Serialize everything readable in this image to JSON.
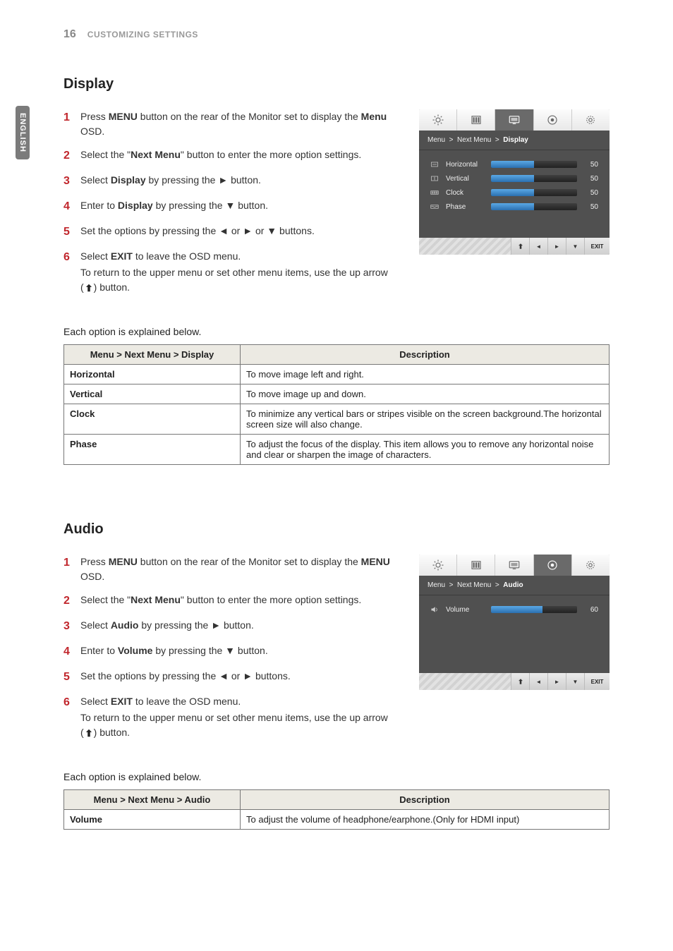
{
  "header": {
    "page_number": "16",
    "title": "CUSTOMIZING SETTINGS",
    "language_tab": "ENGLISH"
  },
  "display": {
    "title": "Display",
    "steps": [
      {
        "n": "1",
        "html": "Press <b>MENU</b> button on the rear of the Monitor set to display the <b>Menu</b> OSD."
      },
      {
        "n": "2",
        "html": "Select the \"<b>Next Menu</b>\" button to enter the more option settings."
      },
      {
        "n": "3",
        "html": "Select <b>Display</b> by pressing the ► button."
      },
      {
        "n": "4",
        "html": "Enter to <b>Display</b> by pressing the ▼ button."
      },
      {
        "n": "5",
        "html": "Set the options by pressing the ◄ or ► or ▼ buttons."
      },
      {
        "n": "6",
        "html": "Select <b>EXIT</b> to leave the OSD menu.<span class=\"sub\">To return to the upper menu or set other menu items, use the up arrow (<svg class=\"arrow-icon\" viewBox=\"0 0 24 24\"><path d=\"M12 3l-7 7h4v11h6V10h4z\" fill=\"#222\"/></svg>) button.</span>"
      }
    ],
    "osd": {
      "breadcrumb_parts": [
        "Menu",
        "Next Menu",
        "Display"
      ],
      "rows": [
        {
          "icon": "horizontal",
          "label": "Horizontal",
          "value": 50
        },
        {
          "icon": "vertical",
          "label": "Vertical",
          "value": 50
        },
        {
          "icon": "clock",
          "label": "Clock",
          "value": 50
        },
        {
          "icon": "phase",
          "label": "Phase",
          "value": 50
        }
      ],
      "active_tab": 2,
      "footer_exit": "EXIT"
    },
    "explain_intro": "Each option is explained below.",
    "table": {
      "head_menu": "Menu > Next Menu > Display",
      "head_desc": "Description",
      "rows": [
        {
          "name": "Horizontal",
          "desc": "To move image left and right."
        },
        {
          "name": "Vertical",
          "desc": "To move image up and down."
        },
        {
          "name": "Clock",
          "desc": "To minimize any vertical bars or stripes visible on the screen background.The horizontal screen size will also change."
        },
        {
          "name": "Phase",
          "desc": "To adjust the focus of the display. This item allows you to remove any horizontal noise and clear or sharpen the image of characters."
        }
      ]
    }
  },
  "audio": {
    "title": "Audio",
    "steps": [
      {
        "n": "1",
        "html": "Press <b>MENU</b> button on the rear of the Monitor set to display the <b>MENU</b> OSD."
      },
      {
        "n": "2",
        "html": "Select the \"<b>Next Menu</b>\" button to enter the more option settings."
      },
      {
        "n": "3",
        "html": "Select <b>Audio</b> by pressing the ► button."
      },
      {
        "n": "4",
        "html": "Enter to <b>Volume</b> by pressing the ▼ button."
      },
      {
        "n": "5",
        "html": "Set the options by pressing the ◄ or ► buttons."
      },
      {
        "n": "6",
        "html": "Select <b>EXIT</b> to leave the OSD menu.<span class=\"sub\">To return to the upper menu or set other menu items, use the up arrow (<svg class=\"arrow-icon\" viewBox=\"0 0 24 24\"><path d=\"M12 3l-7 7h4v11h6V10h4z\" fill=\"#222\"/></svg>) button.</span>"
      }
    ],
    "osd": {
      "breadcrumb_parts": [
        "Menu",
        "Next Menu",
        "Audio"
      ],
      "rows": [
        {
          "icon": "volume",
          "label": "Volume",
          "value": 60
        }
      ],
      "active_tab": 3,
      "footer_exit": "EXIT"
    },
    "explain_intro": "Each option is explained below.",
    "table": {
      "head_menu": "Menu > Next Menu > Audio",
      "head_desc": "Description",
      "rows": [
        {
          "name": "Volume",
          "desc": "To adjust the volume of headphone/earphone.(Only for HDMI input)"
        }
      ]
    }
  },
  "osd_icons": {
    "tab_colors": {
      "inactive_stroke": "#666",
      "active_stroke": "#fff"
    }
  }
}
